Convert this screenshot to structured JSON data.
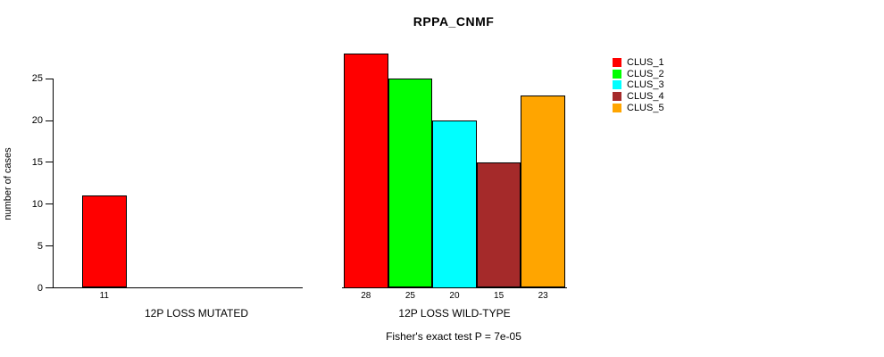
{
  "title": "RPPA_CNMF",
  "ylabel": "number of cases",
  "annotation": "Fisher's exact test P = 7e-05",
  "legend": {
    "items": [
      {
        "label": "CLUS_1",
        "color": "#ff0000"
      },
      {
        "label": "CLUS_2",
        "color": "#00ff00"
      },
      {
        "label": "CLUS_3",
        "color": "#00ffff"
      },
      {
        "label": "CLUS_4",
        "color": "#a52a2a"
      },
      {
        "label": "CLUS_5",
        "color": "#ffa500"
      }
    ],
    "position": "right"
  },
  "chart_data": {
    "type": "bar",
    "title": "RPPA_CNMF",
    "ylabel": "number of cases",
    "xlabel": "",
    "ylim": [
      0,
      28
    ],
    "yticks": [
      0,
      5,
      10,
      15,
      20,
      25
    ],
    "grid": false,
    "legend_position": "right",
    "series_names": [
      "CLUS_1",
      "CLUS_2",
      "CLUS_3",
      "CLUS_4",
      "CLUS_5"
    ],
    "groups": [
      {
        "label": "12P LOSS MUTATED",
        "bars": [
          {
            "cluster": "CLUS_1",
            "value": 11,
            "color": "#ff0000"
          }
        ]
      },
      {
        "label": "12P LOSS WILD-TYPE",
        "bars": [
          {
            "cluster": "CLUS_1",
            "value": 28,
            "color": "#ff0000"
          },
          {
            "cluster": "CLUS_2",
            "value": 25,
            "color": "#00ff00"
          },
          {
            "cluster": "CLUS_3",
            "value": 20,
            "color": "#00ffff"
          },
          {
            "cluster": "CLUS_4",
            "value": 15,
            "color": "#a52a2a"
          },
          {
            "cluster": "CLUS_5",
            "value": 23,
            "color": "#ffa500"
          }
        ]
      }
    ],
    "annotation": "Fisher's exact test P = 7e-05"
  }
}
